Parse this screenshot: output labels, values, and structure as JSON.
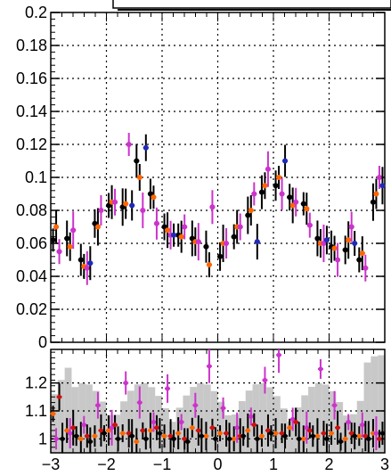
{
  "chart_data": [
    {
      "type": "scatter",
      "panel": "main",
      "title": "",
      "xlabel": "",
      "ylabel": "",
      "xlim": [
        -3,
        3
      ],
      "ylim": [
        0,
        0.2
      ],
      "grid": true,
      "y_ticks": [
        "0.2",
        "0.18",
        "0.16",
        "0.14",
        "0.12",
        "0.1",
        "0.08",
        "0.06",
        "0.04",
        "0.02",
        "0"
      ],
      "error_bars": true,
      "colors": {
        "black": "#000000",
        "orange": "#ff6600",
        "magenta": "#cc33cc",
        "blue": "#1f2ab8",
        "red": "#cc1111"
      },
      "series": [
        {
          "name": "",
          "color": "#000000",
          "x": [
            -2.875,
            -2.625,
            -2.375,
            -2.125,
            -1.875,
            -1.625,
            -1.375,
            -1.125,
            -0.875,
            -0.625,
            -0.375,
            -0.125,
            0.125,
            0.375,
            0.625,
            0.875,
            1.125,
            1.375,
            1.625,
            1.875,
            2.125,
            2.375,
            2.625,
            2.875
          ],
          "y": [
            0.062,
            0.063,
            0.05,
            0.072,
            0.083,
            0.082,
            0.11,
            0.09,
            0.07,
            0.065,
            0.063,
            0.058,
            0.052,
            0.064,
            0.077,
            0.091,
            0.095,
            0.088,
            0.084,
            0.063,
            0.058,
            0.056,
            0.05,
            0.085
          ]
        },
        {
          "name": "",
          "color": "#ff6600",
          "x": [
            -2.875,
            -2.625,
            -2.375,
            -2.125,
            -1.875,
            -1.625,
            -1.375,
            -1.125,
            -0.875,
            -0.625,
            -0.375,
            -0.125,
            0.125,
            0.375,
            0.625,
            0.875,
            1.125,
            1.375,
            1.625,
            1.875,
            2.125,
            2.375,
            2.625,
            2.875
          ],
          "y": [
            0.07,
            0.058,
            0.046,
            0.07,
            0.085,
            0.084,
            0.1,
            0.088,
            0.068,
            0.064,
            0.061,
            0.047,
            0.06,
            0.07,
            0.08,
            0.095,
            0.1,
            0.083,
            0.081,
            0.06,
            0.057,
            0.062,
            0.054,
            0.09
          ]
        },
        {
          "name": "",
          "color": "#cc33cc",
          "x": [
            -2.875,
            -2.625,
            -2.375,
            -2.125,
            -1.875,
            -1.625,
            -1.375,
            -1.125,
            -0.875,
            -0.625,
            -0.375,
            -0.125,
            0.125,
            0.375,
            0.625,
            0.875,
            1.125,
            1.375,
            1.625,
            1.875,
            2.125,
            2.375,
            2.625,
            2.875
          ],
          "y": [
            0.055,
            0.068,
            0.045,
            0.08,
            0.085,
            0.12,
            0.08,
            0.072,
            0.065,
            0.07,
            0.061,
            0.082,
            0.06,
            0.07,
            0.09,
            0.105,
            0.09,
            0.085,
            0.071,
            0.06,
            0.05,
            0.07,
            0.045,
            0.1
          ]
        },
        {
          "name": "",
          "color": "#1f2ab8",
          "x": [
            -2.375,
            -1.625,
            -1.375,
            -0.875,
            0.625,
            1.125,
            1.875,
            2.375,
            2.875
          ],
          "y": [
            0.048,
            0.083,
            0.118,
            0.065,
            0.061,
            0.11,
            0.062,
            0.06,
            0.095
          ]
        }
      ]
    },
    {
      "type": "scatter",
      "panel": "ratio",
      "title": "",
      "xlabel": "",
      "ylabel": "",
      "xlim": [
        -3,
        3
      ],
      "ylim": [
        0.95,
        1.32
      ],
      "grid": true,
      "x_ticks": [
        "−3",
        "−2",
        "−1",
        "0",
        "1",
        "2",
        "3"
      ],
      "y_ticks": [
        "1.2",
        "1.1",
        "1"
      ],
      "uncertainty_band": true,
      "series": [
        {
          "name": "",
          "color": "#ff6600",
          "x": [
            -2.875,
            -2.625,
            -2.375,
            -2.125,
            -1.875,
            -1.625,
            -1.375,
            -1.125,
            -0.875,
            -0.625,
            -0.375,
            -0.125,
            0.125,
            0.375,
            0.625,
            0.875,
            1.125,
            1.375,
            1.625,
            1.875,
            2.125,
            2.375,
            2.625,
            2.875
          ],
          "y": [
            1.09,
            1.03,
            1.0,
            1.01,
            1.03,
            1.02,
            0.99,
            1.03,
            1.01,
            1.02,
            1.04,
            1.01,
            1.02,
            1.0,
            1.03,
            1.01,
            1.02,
            1.04,
            1.0,
            1.01,
            1.02,
            1.0,
            1.01,
            1.02
          ]
        },
        {
          "name": "",
          "color": "#cc33cc",
          "x": [
            -2.875,
            -2.625,
            -2.375,
            -2.125,
            -1.875,
            -1.625,
            -1.375,
            -1.125,
            -0.875,
            -0.625,
            -0.375,
            -0.125,
            0.125,
            0.375,
            0.625,
            0.875,
            1.125,
            1.375,
            1.625,
            1.875,
            2.125,
            2.375,
            2.625,
            2.875
          ],
          "y": [
            1.0,
            1.02,
            1.05,
            1.12,
            1.04,
            1.2,
            1.13,
            1.06,
            1.18,
            1.06,
            1.12,
            1.26,
            1.11,
            1.04,
            1.08,
            1.21,
            1.3,
            1.07,
            1.04,
            1.25,
            1.12,
            1.06,
            1.05,
            1.02
          ]
        },
        {
          "name": "",
          "color": "#cc1111",
          "x": [
            -2.875,
            -2.625,
            -2.375,
            -2.125,
            -1.875,
            -1.625,
            -1.375,
            -1.125,
            -0.875,
            -0.625,
            -0.375,
            -0.125,
            0.125,
            0.375,
            0.625,
            0.875,
            1.125,
            1.375,
            1.625,
            1.875,
            2.125,
            2.375,
            2.625,
            2.875
          ],
          "y": [
            1.15,
            1.04,
            1.01,
            1.03,
            1.05,
            1.02,
            1.03,
            1.04,
            1.01,
            1.0,
            1.03,
            1.04,
            1.02,
            1.01,
            1.05,
            1.03,
            1.02,
            1.06,
            1.03,
            1.02,
            1.04,
            1.02,
            1.01,
            1.0
          ]
        },
        {
          "name": "",
          "color": "#000000",
          "x": [
            -2.875,
            -2.625,
            -2.375,
            -2.125,
            -1.875,
            -1.625,
            -1.375,
            -1.125,
            -0.875,
            -0.625,
            -0.375,
            -0.125,
            0.125,
            0.375,
            0.625,
            0.875,
            1.125,
            1.375,
            1.625,
            1.875,
            2.125,
            2.375,
            2.625,
            2.875
          ],
          "y": [
            1.0,
            1.01,
            0.99,
            1.02,
            1.0,
            1.01,
            1.0,
            1.02,
            1.0,
            0.99,
            1.01,
            1.0,
            1.0,
            1.01,
            1.0,
            1.02,
            1.01,
            1.0,
            1.01,
            1.0,
            0.99,
            1.01,
            1.0,
            1.02
          ]
        }
      ]
    }
  ]
}
